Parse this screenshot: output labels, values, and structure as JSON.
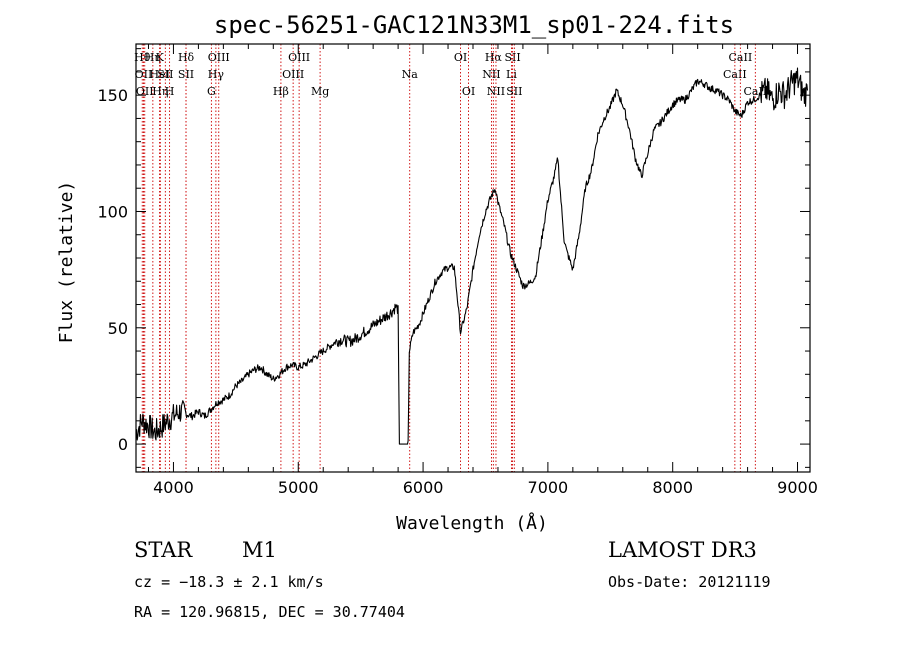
{
  "chart_data": {
    "type": "line",
    "title": "spec-56251-GAC121N33M1_sp01-224.fits",
    "xlabel": "Wavelength (Å)",
    "ylabel": "Flux (relative)",
    "xlim": [
      3700,
      9100
    ],
    "ylim": [
      -12,
      172
    ],
    "xticks": [
      4000,
      5000,
      6000,
      7000,
      8000,
      9000
    ],
    "yticks": [
      0,
      50,
      100,
      150
    ],
    "line_color": "#000000",
    "marker_color": "#cc0000",
    "series": [
      {
        "name": "flux",
        "x": [
          3700,
          3750,
          3800,
          3850,
          3900,
          3950,
          4000,
          4050,
          4100,
          4150,
          4200,
          4250,
          4300,
          4350,
          4400,
          4450,
          4500,
          4550,
          4600,
          4650,
          4700,
          4750,
          4800,
          4850,
          4900,
          4950,
          5000,
          5050,
          5100,
          5150,
          5200,
          5250,
          5300,
          5350,
          5400,
          5450,
          5500,
          5550,
          5600,
          5650,
          5700,
          5750,
          5780,
          5800,
          5810,
          5880,
          5890,
          5920,
          5950,
          5980,
          6000,
          6050,
          6100,
          6150,
          6200,
          6250,
          6280,
          6300,
          6350,
          6400,
          6450,
          6500,
          6550,
          6580,
          6600,
          6650,
          6700,
          6750,
          6800,
          6850,
          6900,
          6950,
          7000,
          7050,
          7080,
          7100,
          7130,
          7150,
          7200,
          7250,
          7300,
          7350,
          7400,
          7450,
          7500,
          7550,
          7600,
          7650,
          7700,
          7750,
          7800,
          7850,
          7900,
          7950,
          8000,
          8050,
          8100,
          8150,
          8200,
          8250,
          8300,
          8350,
          8400,
          8450,
          8500,
          8550,
          8600,
          8650,
          8700,
          8750,
          8800,
          8850,
          8900,
          8950,
          9000,
          9050,
          9080
        ],
        "y": [
          5,
          10,
          8,
          5,
          7,
          10,
          12,
          14,
          13,
          12,
          14,
          12,
          15,
          18,
          19,
          21,
          25,
          27,
          30,
          32,
          33,
          30,
          28,
          30,
          33,
          34,
          33,
          34,
          36,
          38,
          40,
          42,
          44,
          45,
          44,
          45,
          47,
          49,
          51,
          53,
          55,
          57,
          59,
          58,
          0,
          0,
          40,
          48,
          50,
          53,
          56,
          63,
          70,
          74,
          76,
          76,
          60,
          48,
          58,
          75,
          90,
          100,
          107,
          110,
          104,
          94,
          82,
          75,
          68,
          69,
          72,
          88,
          105,
          115,
          123,
          108,
          88,
          83,
          75,
          90,
          110,
          118,
          133,
          140,
          145,
          152,
          146,
          136,
          123,
          115,
          125,
          135,
          138,
          142,
          146,
          148,
          148,
          152,
          156,
          155,
          153,
          152,
          150,
          148,
          143,
          141,
          147,
          148,
          150,
          152,
          148,
          152,
          150,
          155,
          157,
          150,
          152
        ]
      }
    ],
    "line_markers": [
      {
        "x": 3750,
        "row": 1,
        "label": "Hθ"
      },
      {
        "x": 3760,
        "row": 2,
        "label": "OII"
      },
      {
        "x": 3770,
        "row": 3,
        "label": "OII"
      },
      {
        "x": 3835,
        "row": 1,
        "label": "Hη"
      },
      {
        "x": 3890,
        "row": 1,
        "label": "K"
      },
      {
        "x": 3890,
        "row": 2,
        "label": "HeI"
      },
      {
        "x": 3895,
        "row": 3,
        "label": "Hη"
      },
      {
        "x": 3935,
        "row": 2,
        "label": "SII"
      },
      {
        "x": 3969,
        "row": 3,
        "label": "H"
      },
      {
        "x": 4101,
        "row": 1,
        "label": "Hδ"
      },
      {
        "x": 4101,
        "row": 2,
        "label": "SII"
      },
      {
        "x": 4304,
        "row": 3,
        "label": "G"
      },
      {
        "x": 4340,
        "row": 2,
        "label": "Hγ"
      },
      {
        "x": 4363,
        "row": 1,
        "label": "OIII"
      },
      {
        "x": 4861,
        "row": 3,
        "label": "Hβ"
      },
      {
        "x": 4959,
        "row": 2,
        "label": "OIII"
      },
      {
        "x": 5007,
        "row": 1,
        "label": "OIII"
      },
      {
        "x": 5175,
        "row": 3,
        "label": "Mg"
      },
      {
        "x": 5893,
        "row": 2,
        "label": "Na"
      },
      {
        "x": 6300,
        "row": 1,
        "label": "OI"
      },
      {
        "x": 6364,
        "row": 3,
        "label": "OI"
      },
      {
        "x": 6548,
        "row": 2,
        "label": "NII"
      },
      {
        "x": 6563,
        "row": 1,
        "label": "Hα"
      },
      {
        "x": 6584,
        "row": 3,
        "label": "NII"
      },
      {
        "x": 6708,
        "row": 2,
        "label": "Li"
      },
      {
        "x": 6717,
        "row": 1,
        "label": "SII"
      },
      {
        "x": 6731,
        "row": 3,
        "label": "SII"
      },
      {
        "x": 8498,
        "row": 2,
        "label": "CaII"
      },
      {
        "x": 8542,
        "row": 1,
        "label": "CaII"
      },
      {
        "x": 8662,
        "row": 3,
        "label": "CaII"
      }
    ]
  },
  "info": {
    "object_class": "STAR",
    "subclass": "M1",
    "redshift": "cz = −18.3 ± 2.1 km/s",
    "coordinates": "RA = 120.96815, DEC =  30.77404",
    "survey": "LAMOST DR3",
    "obs_date": "Obs-Date: 20121119"
  }
}
